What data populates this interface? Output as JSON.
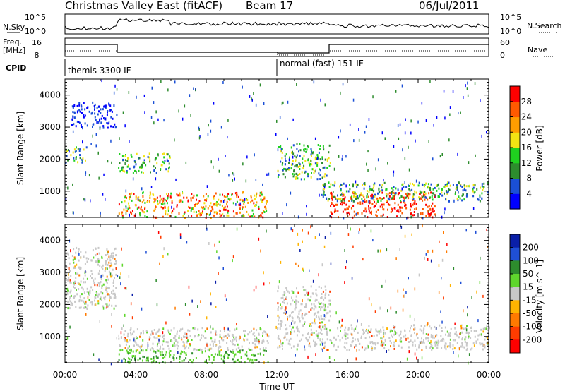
{
  "header": {
    "title": "Christmas Valley East (fitACF)",
    "beam": "Beam 17",
    "date": "06/Jul/2011"
  },
  "top_panels": {
    "nsky_label": "N.Sky",
    "nsearch_label": "N.Search",
    "freq_label_line1": "Freq.",
    "freq_label_line2": "[MHz]",
    "nave_label": "Nave",
    "cpid_label": "CPID",
    "noise_ticks": [
      "10^5",
      "10^0"
    ],
    "freq_ticks": [
      "16",
      "8"
    ],
    "nave_ticks": [
      "60",
      "0"
    ],
    "cpid_segments": [
      {
        "start_hour": 0,
        "label": "themis 3300 IF"
      },
      {
        "start_hour": 12,
        "label": "normal (fast) 151 IF"
      }
    ]
  },
  "chart_data": [
    {
      "type": "heatmap",
      "name": "power",
      "ylabel": "Slant Range [km]",
      "xlabel": "Time UT",
      "x_ticks": [
        "00:00",
        "04:00",
        "08:00",
        "12:00",
        "16:00",
        "20:00",
        "00:00"
      ],
      "xlim_hours": [
        0,
        24
      ],
      "y_ticks": [
        1000,
        2000,
        3000,
        4000
      ],
      "ylim": [
        180,
        4500
      ],
      "colorbar": {
        "label": "Power [dB]",
        "ticks": [
          4,
          8,
          12,
          16,
          20,
          24,
          28
        ],
        "range": [
          0,
          32
        ],
        "colors": [
          "#0000ff",
          "#1a4fd6",
          "#2d8c2d",
          "#1fd11f",
          "#f2e313",
          "#ff9d00",
          "#ff5a00",
          "#ff0000"
        ]
      },
      "regions": [
        {
          "t0": 0.0,
          "t1": 1.2,
          "r0": 1900,
          "r1": 2400,
          "level": "moderate"
        },
        {
          "t0": 0.3,
          "t1": 2.9,
          "r0": 3000,
          "r1": 3800,
          "level": "weak"
        },
        {
          "t0": 3.0,
          "t1": 6.0,
          "r0": 1600,
          "r1": 2200,
          "level": "moderate"
        },
        {
          "t0": 3.0,
          "t1": 11.5,
          "r0": 200,
          "r1": 1000,
          "level": "strong"
        },
        {
          "t0": 12.0,
          "t1": 15.0,
          "r0": 1400,
          "r1": 2500,
          "level": "moderate"
        },
        {
          "t0": 15.0,
          "t1": 21.0,
          "r0": 200,
          "r1": 1000,
          "level": "very strong"
        },
        {
          "t0": 14.5,
          "t1": 24.0,
          "r0": 700,
          "r1": 1300,
          "level": "moderate"
        }
      ]
    },
    {
      "type": "heatmap",
      "name": "velocity",
      "ylabel": "Slant Range [km]",
      "xlabel": "Time UT",
      "x_ticks": [
        "00:00",
        "04:00",
        "08:00",
        "12:00",
        "16:00",
        "20:00",
        "00:00"
      ],
      "xlim_hours": [
        0,
        24
      ],
      "y_ticks": [
        1000,
        2000,
        3000,
        4000
      ],
      "ylim": [
        180,
        4500
      ],
      "colorbar": {
        "label": "Velocity [m s^-1]",
        "ticks": [
          200,
          100,
          50,
          15,
          -15,
          -50,
          -100,
          -200
        ],
        "colors": [
          "#0a1fa8",
          "#1f4fd6",
          "#2d8c2d",
          "#5fd62d",
          "#c8c8c8",
          "#ffb400",
          "#ff7a00",
          "#ff3c00",
          "#ff0000"
        ]
      },
      "regions": [
        {
          "t0": 0.0,
          "t1": 2.9,
          "r0": 1900,
          "r1": 3800,
          "level": "near zero"
        },
        {
          "t0": 3.0,
          "t1": 11.5,
          "r0": 600,
          "r1": 1300,
          "level": "near zero"
        },
        {
          "t0": 3.0,
          "t1": 11.5,
          "r0": 200,
          "r1": 600,
          "level": "positive 15-50"
        },
        {
          "t0": 12.0,
          "t1": 24.0,
          "r0": 600,
          "r1": 1400,
          "level": "near zero"
        },
        {
          "t0": 12.0,
          "t1": 15.0,
          "r0": 1400,
          "r1": 2600,
          "level": "near zero"
        }
      ]
    }
  ]
}
